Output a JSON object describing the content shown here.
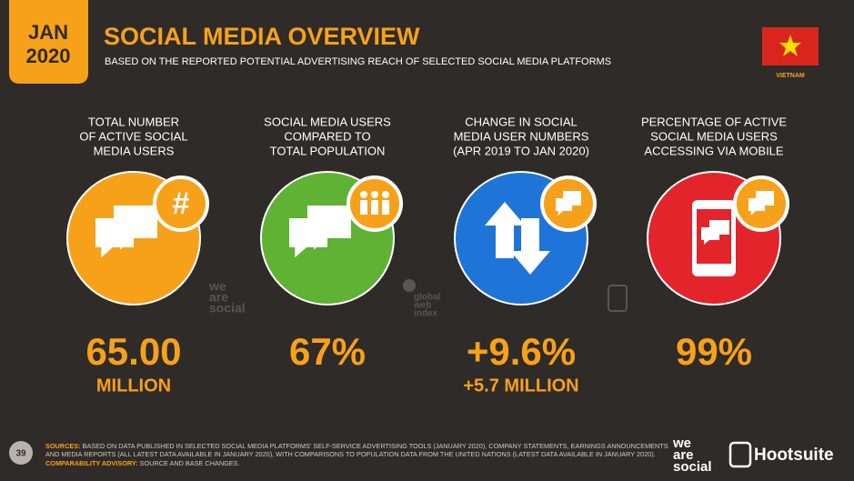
{
  "header": {
    "month": "JAN",
    "year": "2020",
    "title": "SOCIAL MEDIA OVERVIEW",
    "subtitle": "BASED ON THE REPORTED POTENTIAL ADVERTISING REACH OF SELECTED SOCIAL MEDIA PLATFORMS",
    "country": "VIETNAM"
  },
  "stats": [
    {
      "label": [
        "TOTAL NUMBER",
        "OF ACTIVE SOCIAL",
        "MEDIA USERS"
      ],
      "value": "65.00",
      "sub": "MILLION"
    },
    {
      "label": [
        "SOCIAL MEDIA USERS",
        "COMPARED TO",
        "TOTAL POPULATION"
      ],
      "value": "67%"
    },
    {
      "label": [
        "CHANGE IN SOCIAL",
        "MEDIA USER NUMBERS",
        "(APR 2019 TO JAN 2020)"
      ],
      "value": "+9.6%",
      "sub": "+5.7 MILLION"
    },
    {
      "label": [
        "PERCENTAGE OF ACTIVE",
        "SOCIAL MEDIA USERS",
        "ACCESSING VIA MOBILE"
      ],
      "value": "99%"
    }
  ],
  "watermarks": {
    "we_are_social": [
      "we",
      "are",
      "social"
    ],
    "global_web_index": [
      "global",
      "web",
      "index"
    ]
  },
  "footer": {
    "page": "39",
    "sources_label": "SOURCES:",
    "sources": [
      "BASED ON DATA PUBLISHED IN SELECTED SOCIAL MEDIA PLATFORMS' SELF-SERVICE ADVERTISING TOOLS (JANUARY 2020), COMPANY STATEMENTS, EARNINGS ANNOUNCEMENTS",
      "AND MEDIA REPORTS (ALL LATEST DATA AVAILABLE IN JANUARY 2020), WITH COMPARISONS TO POPULATION DATA FROM THE UNITED NATIONS (LATEST DATA AVAILABLE IN JANUARY 2020)."
    ],
    "advisory_label": "COMPARABILITY ADVISORY:",
    "advisory": "SOURCE AND BASE CHANGES.",
    "logo_was": [
      "we",
      "are",
      "social"
    ],
    "logo_hootsuite": "Hootsuite"
  }
}
